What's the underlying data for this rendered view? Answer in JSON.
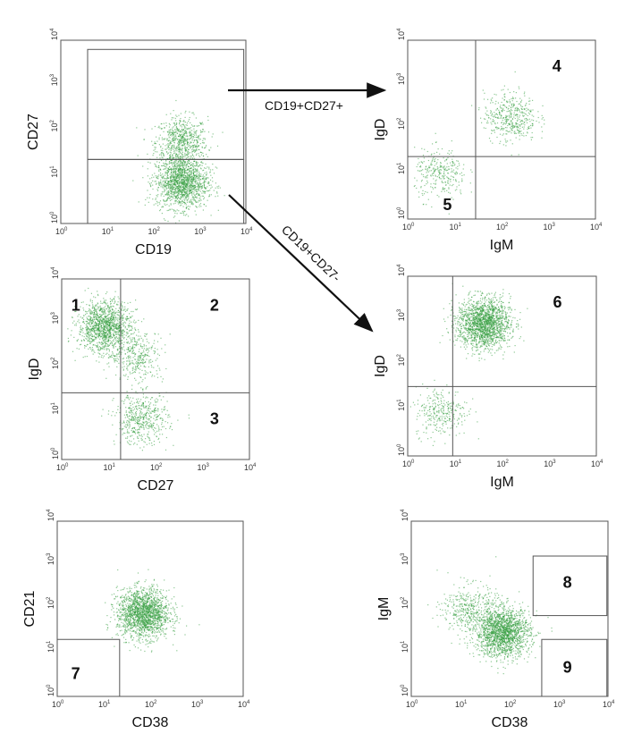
{
  "chart_data": [
    {
      "id": "p1",
      "type": "scatter",
      "xlabel": "CD19",
      "ylabel": "CD27",
      "xscale": "log",
      "yscale": "log",
      "xlim": [
        1,
        10000
      ],
      "ylim": [
        1,
        10000
      ],
      "tick_labels": [
        "10",
        "10",
        "10",
        "10",
        "10"
      ],
      "tick_exponents": [
        "0",
        "1",
        "2",
        "3",
        "4"
      ],
      "gates": [
        {
          "type": "rect",
          "x": [
            3.8,
            9000
          ],
          "y": [
            25,
            6300
          ]
        },
        {
          "type": "rect",
          "x": [
            3.8,
            9000
          ],
          "y": [
            1,
            25
          ]
        }
      ],
      "clusters": [
        {
          "x": 400,
          "y": 60,
          "count": 700
        },
        {
          "x": 400,
          "y": 8,
          "count": 1500
        }
      ],
      "regions": []
    },
    {
      "id": "p2",
      "type": "scatter",
      "xlabel": "IgM",
      "ylabel": "IgD",
      "xscale": "log",
      "yscale": "log",
      "xlim": [
        1,
        10000
      ],
      "ylim": [
        1,
        10000
      ],
      "tick_labels": [
        "10",
        "10",
        "10",
        "10",
        "10"
      ],
      "tick_exponents": [
        "0",
        "1",
        "2",
        "3",
        "4"
      ],
      "quadrant": {
        "x": 28,
        "y": 25
      },
      "clusters": [
        {
          "x": 150,
          "y": 200,
          "count": 450
        },
        {
          "x": 5,
          "y": 10,
          "count": 300
        }
      ],
      "regions": [
        {
          "label": "4",
          "x": 1500,
          "y": 2000
        },
        {
          "label": "5",
          "x": 7,
          "y": 1.6
        }
      ]
    },
    {
      "id": "p3",
      "type": "scatter",
      "xlabel": "CD27",
      "ylabel": "IgD",
      "xscale": "log",
      "yscale": "log",
      "xlim": [
        1,
        10000
      ],
      "ylim": [
        1,
        10000
      ],
      "tick_labels": [
        "10",
        "10",
        "10",
        "10",
        "10"
      ],
      "tick_exponents": [
        "0",
        "1",
        "2",
        "3",
        "4"
      ],
      "quadrant": {
        "x": 18,
        "y": 30
      },
      "clusters": [
        {
          "x": 8,
          "y": 900,
          "count": 1300
        },
        {
          "x": 40,
          "y": 200,
          "count": 350
        },
        {
          "x": 50,
          "y": 8,
          "count": 500
        }
      ],
      "regions": [
        {
          "label": "1",
          "x": 2,
          "y": 2000
        },
        {
          "label": "2",
          "x": 1800,
          "y": 2000
        },
        {
          "label": "3",
          "x": 1800,
          "y": 6
        }
      ]
    },
    {
      "id": "p4",
      "type": "scatter",
      "xlabel": "IgM",
      "ylabel": "IgD",
      "xscale": "log",
      "yscale": "log",
      "xlim": [
        1,
        10000
      ],
      "ylim": [
        1,
        10000
      ],
      "tick_labels": [
        "10",
        "10",
        "10",
        "10",
        "10"
      ],
      "tick_exponents": [
        "0",
        "1",
        "2",
        "3",
        "4"
      ],
      "quadrant": {
        "x": 9,
        "y": 35
      },
      "clusters": [
        {
          "x": 40,
          "y": 900,
          "count": 1800
        },
        {
          "x": 5,
          "y": 10,
          "count": 300
        }
      ],
      "regions": [
        {
          "label": "6",
          "x": 1500,
          "y": 2000
        }
      ]
    },
    {
      "id": "p5",
      "type": "scatter",
      "xlabel": "CD38",
      "ylabel": "CD21",
      "xscale": "log",
      "yscale": "log",
      "xlim": [
        1,
        10000
      ],
      "ylim": [
        1,
        10000
      ],
      "tick_labels": [
        "10",
        "10",
        "10",
        "10",
        "10"
      ],
      "tick_exponents": [
        "0",
        "1",
        "2",
        "3",
        "4"
      ],
      "gates": [
        {
          "type": "rect",
          "x": [
            1,
            22
          ],
          "y": [
            1,
            20
          ]
        }
      ],
      "clusters": [
        {
          "x": 70,
          "y": 80,
          "count": 1800
        }
      ],
      "regions": [
        {
          "label": "7",
          "x": 2.5,
          "y": 2.5
        }
      ]
    },
    {
      "id": "p6",
      "type": "scatter",
      "xlabel": "CD38",
      "ylabel": "IgM",
      "xscale": "log",
      "yscale": "log",
      "xlim": [
        1,
        10000
      ],
      "ylim": [
        1,
        10000
      ],
      "tick_labels": [
        "10",
        "10",
        "10",
        "10",
        "10"
      ],
      "tick_exponents": [
        "0",
        "1",
        "2",
        "3",
        "4"
      ],
      "gates": [
        {
          "type": "rect",
          "x": [
            300,
            9500
          ],
          "y": [
            70,
            1600
          ]
        },
        {
          "type": "rect",
          "x": [
            450,
            9500
          ],
          "y": [
            1,
            20
          ]
        }
      ],
      "clusters": [
        {
          "x": 70,
          "y": 30,
          "count": 1800
        },
        {
          "x": 15,
          "y": 100,
          "count": 400
        }
      ],
      "regions": [
        {
          "label": "8",
          "x": 1500,
          "y": 300
        },
        {
          "label": "9",
          "x": 1500,
          "y": 3.5
        }
      ]
    }
  ],
  "arrows": [
    {
      "label": "CD19+CD27+"
    },
    {
      "label": "CD19+CD27-"
    }
  ],
  "colors": {
    "dots": "#2f9a3a",
    "frame": "#555555",
    "text": "#111111"
  }
}
